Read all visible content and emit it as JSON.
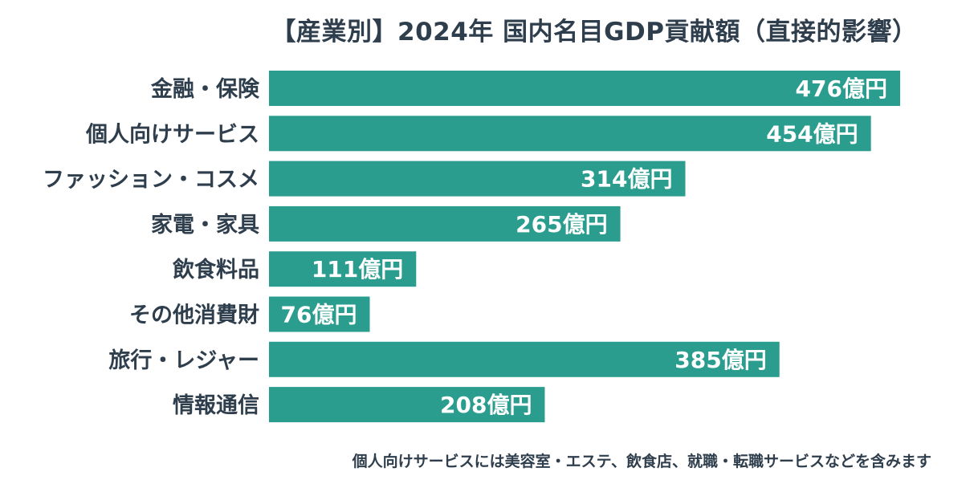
{
  "chart_data": {
    "type": "bar",
    "orientation": "horizontal",
    "title": "【産業別】2024年 国内名目GDP貢献額（直接的影響）",
    "categories": [
      "金融・保険",
      "個人向けサービス",
      "ファッション・コスメ",
      "家電・家具",
      "飲食料品",
      "その他消費財",
      "旅行・レジャー",
      "情報通信"
    ],
    "values": [
      476,
      454,
      314,
      265,
      111,
      76,
      385,
      208
    ],
    "value_labels": [
      "476億円",
      "454億円",
      "314億円",
      "265億円",
      "111億円",
      "76億円",
      "385億円",
      "208億円"
    ],
    "unit": "億円",
    "xlim": [
      0,
      476
    ],
    "grid": false,
    "legend": "none",
    "bar_color": "#2a9d8f",
    "label_color": "#ffffff",
    "text_color": "#2f3e4d"
  },
  "footnote": "個人向けサービスには美容室・エステ、飲食店、就職・転職サービスなどを含みます"
}
